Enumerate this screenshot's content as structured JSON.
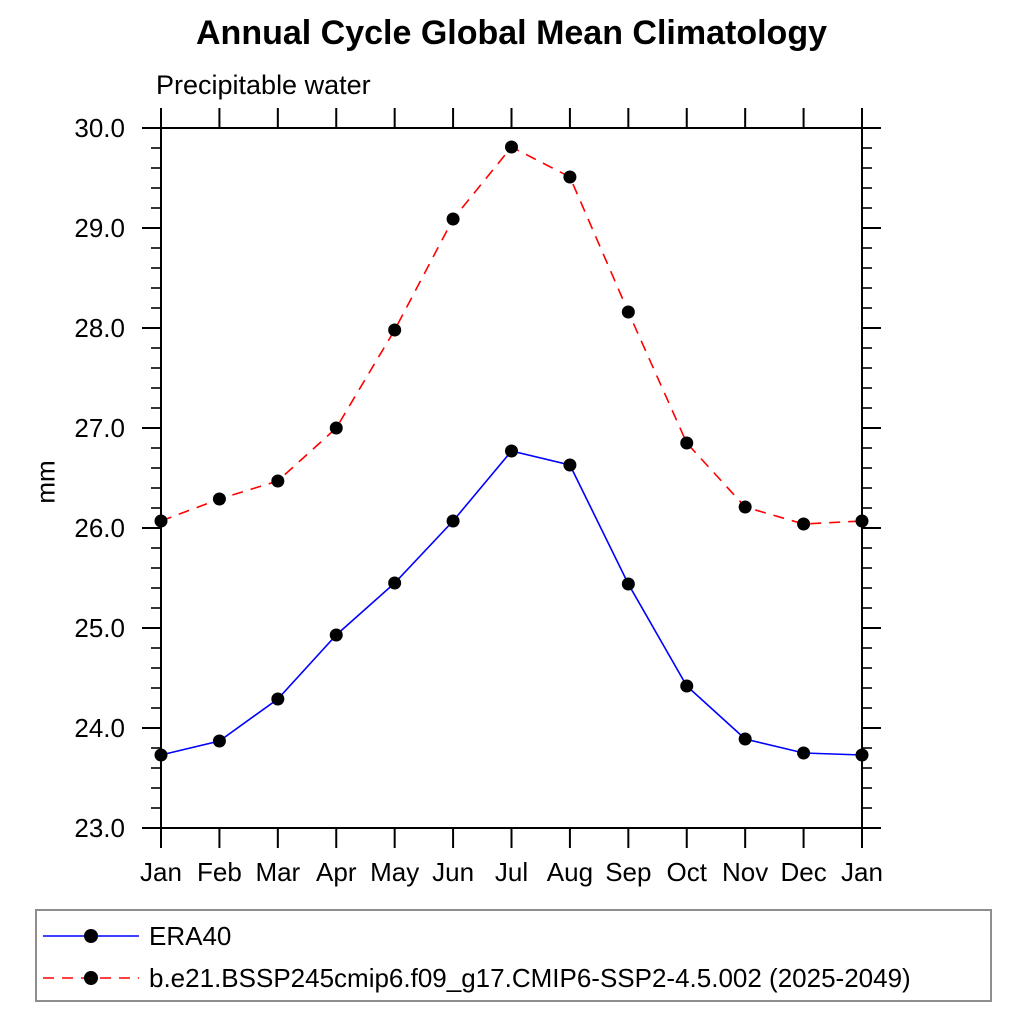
{
  "title": "Annual Cycle Global Mean Climatology",
  "subtitle": "Precipitable water",
  "ylabel": "mm",
  "chart_data": {
    "type": "line",
    "title": "Annual Cycle Global Mean Climatology",
    "subtitle": "Precipitable water",
    "xlabel": "",
    "ylabel": "mm",
    "categories": [
      "Jan",
      "Feb",
      "Mar",
      "Apr",
      "May",
      "Jun",
      "Jul",
      "Aug",
      "Sep",
      "Oct",
      "Nov",
      "Dec",
      "Jan"
    ],
    "series": [
      {
        "name": "ERA40",
        "color": "#0000ff",
        "line_style": "solid",
        "marker": "filled-circle",
        "marker_color": "#000000",
        "values": [
          23.73,
          23.87,
          24.29,
          24.93,
          25.45,
          26.07,
          26.77,
          26.63,
          25.44,
          24.42,
          23.89,
          23.75,
          23.73
        ]
      },
      {
        "name": "b.e21.BSSP245cmip6.f09_g17.CMIP6-SSP2-4.5.002 (2025-2049)",
        "color": "#ff0000",
        "line_style": "dashed",
        "marker": "filled-circle",
        "marker_color": "#000000",
        "values": [
          26.07,
          26.29,
          26.47,
          27.0,
          27.98,
          29.09,
          29.81,
          29.51,
          28.16,
          26.85,
          26.21,
          26.04,
          26.07
        ]
      }
    ],
    "ylim": [
      23.0,
      30.0
    ],
    "y_major_ticks": [
      23.0,
      24.0,
      25.0,
      26.0,
      27.0,
      28.0,
      29.0,
      30.0
    ],
    "y_tick_labels": [
      "23.0",
      "24.0",
      "25.0",
      "26.0",
      "27.0",
      "28.0",
      "29.0",
      "30.0"
    ],
    "y_minor_step": 0.2,
    "grid": false,
    "axis_color": "#000000",
    "legend_position": "bottom"
  }
}
